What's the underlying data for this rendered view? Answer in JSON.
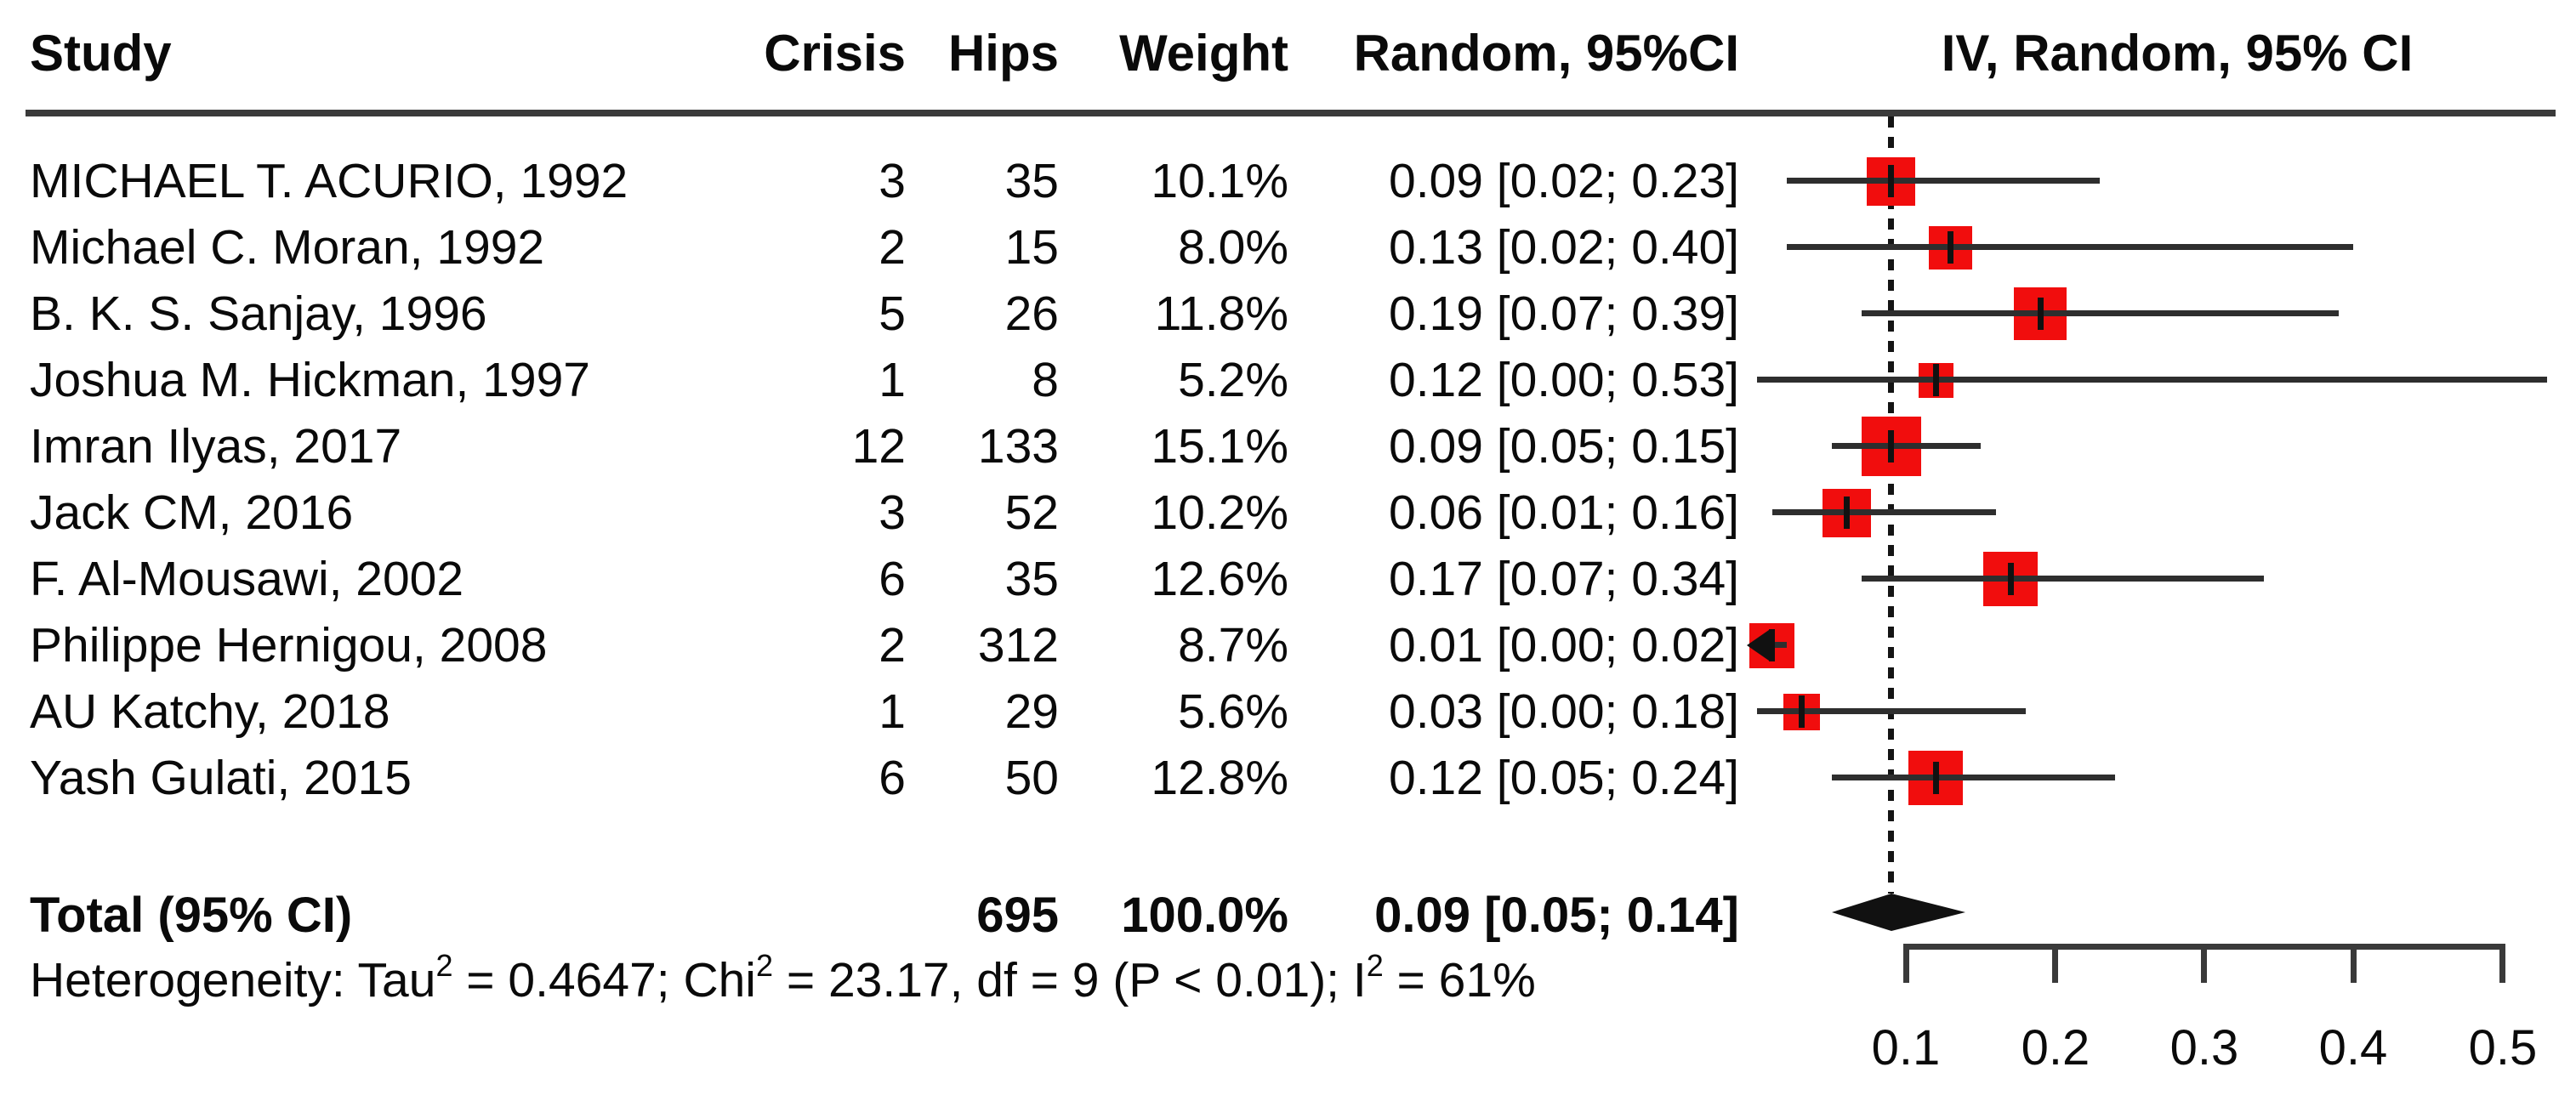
{
  "header": {
    "study": "Study",
    "crisis": "Crisis",
    "hips": "Hips",
    "weight": "Weight",
    "ci": "Random, 95%CI",
    "plot": "IV, Random, 95% CI"
  },
  "total": {
    "label": "Total (95% CI)",
    "hips": "695",
    "weight": "100.0%",
    "ci_text": "0.09 [0.05; 0.14]"
  },
  "heterogeneity_segments": [
    {
      "t": "Heterogeneity: Tau"
    },
    {
      "sup": "2"
    },
    {
      "t": " = 0.4647; Chi"
    },
    {
      "sup": "2"
    },
    {
      "t": " = 23.17, df = 9 (P < 0.01); I"
    },
    {
      "sup": "2"
    },
    {
      "t": " = 61%"
    }
  ],
  "colors": {
    "square": "#f10d0d",
    "ci_line": "#2e2e2e",
    "axis": "#3a3a3a",
    "diamond": "#111111",
    "dashed_line": "#141414",
    "text": "#0a0a0a"
  },
  "chart_data": {
    "type": "forest",
    "columns": [
      "Study",
      "Crisis",
      "Hips",
      "Weight",
      "Random, 95%CI",
      "IV, Random, 95% CI"
    ],
    "studies": [
      {
        "study": "MICHAEL T. ACURIO, 1992",
        "crisis": 3,
        "hips": 35,
        "weight_pct": 10.1,
        "estimate": 0.09,
        "ci_low": 0.02,
        "ci_high": 0.23,
        "arrow_left": false
      },
      {
        "study": "Michael C. Moran, 1992",
        "crisis": 2,
        "hips": 15,
        "weight_pct": 8.0,
        "estimate": 0.13,
        "ci_low": 0.02,
        "ci_high": 0.4,
        "arrow_left": false
      },
      {
        "study": "B. K. S. Sanjay, 1996",
        "crisis": 5,
        "hips": 26,
        "weight_pct": 11.8,
        "estimate": 0.19,
        "ci_low": 0.07,
        "ci_high": 0.39,
        "arrow_left": false
      },
      {
        "study": "Joshua M. Hickman, 1997",
        "crisis": 1,
        "hips": 8,
        "weight_pct": 5.2,
        "estimate": 0.12,
        "ci_low": 0.0,
        "ci_high": 0.53,
        "arrow_left": false
      },
      {
        "study": "Imran Ilyas, 2017",
        "crisis": 12,
        "hips": 133,
        "weight_pct": 15.1,
        "estimate": 0.09,
        "ci_low": 0.05,
        "ci_high": 0.15,
        "arrow_left": false
      },
      {
        "study": "Jack CM, 2016",
        "crisis": 3,
        "hips": 52,
        "weight_pct": 10.2,
        "estimate": 0.06,
        "ci_low": 0.01,
        "ci_high": 0.16,
        "arrow_left": false
      },
      {
        "study": "F. Al-Mousawi, 2002",
        "crisis": 6,
        "hips": 35,
        "weight_pct": 12.6,
        "estimate": 0.17,
        "ci_low": 0.07,
        "ci_high": 0.34,
        "arrow_left": false
      },
      {
        "study": "Philippe Hernigou, 2008",
        "crisis": 2,
        "hips": 312,
        "weight_pct": 8.7,
        "estimate": 0.01,
        "ci_low": 0.0,
        "ci_high": 0.02,
        "arrow_left": true
      },
      {
        "study": "AU Katchy, 2018",
        "crisis": 1,
        "hips": 29,
        "weight_pct": 5.6,
        "estimate": 0.03,
        "ci_low": 0.0,
        "ci_high": 0.18,
        "arrow_left": false
      },
      {
        "study": "Yash Gulati, 2015",
        "crisis": 6,
        "hips": 50,
        "weight_pct": 12.8,
        "estimate": 0.12,
        "ci_low": 0.05,
        "ci_high": 0.24,
        "arrow_left": false
      }
    ],
    "total": {
      "label": "Total (95% CI)",
      "hips": 695,
      "weight_pct": 100.0,
      "estimate": 0.09,
      "ci_low": 0.05,
      "ci_high": 0.14
    },
    "heterogeneity": "Heterogeneity: Tau² = 0.4647; Chi² = 23.17, df = 9 (P < 0.01); I² = 61%",
    "x_axis": {
      "ticks": [
        0.1,
        0.2,
        0.3,
        0.4,
        0.5
      ],
      "range_shown": [
        0.0,
        0.55
      ],
      "grid": false
    },
    "reference_line": 0.09,
    "title": ""
  }
}
